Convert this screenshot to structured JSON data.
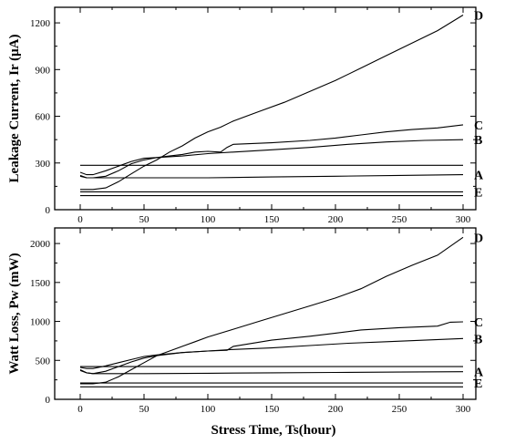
{
  "xlabel": "Stress Time, Ts(hour)",
  "chart_data": [
    {
      "type": "line",
      "ylabel": "Leakage Current, Ir (μA)",
      "xlim": [
        -20,
        310
      ],
      "ylim": [
        0,
        1300
      ],
      "xticks": [
        0,
        50,
        100,
        150,
        200,
        250,
        300
      ],
      "yticks": [
        0,
        300,
        600,
        900,
        1200
      ],
      "xtick_labels": [
        "0",
        "50",
        "100",
        "150",
        "200",
        "250",
        "300"
      ],
      "ytick_labels": [
        "0",
        "300",
        "600",
        "900",
        "1200"
      ],
      "series": [
        {
          "label": "D",
          "x": [
            0,
            10,
            20,
            30,
            40,
            50,
            60,
            70,
            80,
            90,
            100,
            110,
            120,
            140,
            160,
            180,
            200,
            220,
            240,
            260,
            280,
            300
          ],
          "y": [
            130,
            130,
            140,
            180,
            230,
            280,
            320,
            370,
            410,
            460,
            500,
            530,
            570,
            630,
            690,
            760,
            830,
            910,
            990,
            1070,
            1150,
            1250
          ]
        },
        {
          "label": "C",
          "x": [
            0,
            5,
            10,
            20,
            30,
            40,
            50,
            60,
            70,
            80,
            90,
            100,
            110,
            115,
            120,
            150,
            180,
            200,
            220,
            240,
            260,
            280,
            300
          ],
          "y": [
            220,
            205,
            205,
            215,
            250,
            295,
            320,
            335,
            345,
            355,
            370,
            375,
            370,
            400,
            420,
            430,
            445,
            460,
            480,
            500,
            515,
            525,
            545
          ]
        },
        {
          "label": "B",
          "x": [
            0,
            5,
            10,
            20,
            30,
            40,
            50,
            60,
            80,
            100,
            120,
            150,
            180,
            210,
            240,
            270,
            300
          ],
          "y": [
            240,
            225,
            225,
            250,
            280,
            310,
            330,
            335,
            345,
            360,
            370,
            385,
            400,
            420,
            435,
            445,
            450
          ]
        },
        {
          "label": "A",
          "x": [
            0,
            5,
            10,
            50,
            100,
            150,
            200,
            250,
            300
          ],
          "y": [
            215,
            205,
            205,
            205,
            205,
            210,
            215,
            220,
            225
          ]
        },
        {
          "label": "E",
          "x": [
            0,
            300
          ],
          "y": [
            115,
            115
          ]
        },
        {
          "label": "",
          "x": [
            0,
            300
          ],
          "y": [
            285,
            285
          ]
        },
        {
          "label": "",
          "x": [
            0,
            300
          ],
          "y": [
            90,
            90
          ]
        }
      ]
    },
    {
      "type": "line",
      "ylabel": "Watt Loss, Pw (mW)",
      "xlim": [
        -20,
        310
      ],
      "ylim": [
        0,
        2200
      ],
      "xticks": [
        0,
        50,
        100,
        150,
        200,
        250,
        300
      ],
      "yticks": [
        0,
        500,
        1000,
        1500,
        2000
      ],
      "xtick_labels": [
        "0",
        "50",
        "100",
        "150",
        "200",
        "250",
        "300"
      ],
      "ytick_labels": [
        "0",
        "500",
        "1000",
        "1500",
        "2000"
      ],
      "series": [
        {
          "label": "D",
          "x": [
            0,
            10,
            20,
            30,
            40,
            50,
            60,
            70,
            80,
            90,
            100,
            120,
            140,
            160,
            180,
            200,
            220,
            240,
            260,
            280,
            300
          ],
          "y": [
            200,
            200,
            220,
            290,
            380,
            470,
            560,
            620,
            680,
            740,
            800,
            900,
            1000,
            1100,
            1200,
            1300,
            1420,
            1580,
            1720,
            1850,
            2080
          ]
        },
        {
          "label": "C",
          "x": [
            0,
            5,
            10,
            20,
            30,
            40,
            50,
            60,
            80,
            100,
            115,
            120,
            150,
            180,
            200,
            220,
            250,
            280,
            290,
            300
          ],
          "y": [
            370,
            340,
            330,
            360,
            420,
            480,
            530,
            560,
            600,
            620,
            630,
            680,
            760,
            810,
            850,
            890,
            920,
            940,
            990,
            995
          ]
        },
        {
          "label": "B",
          "x": [
            0,
            5,
            10,
            20,
            30,
            40,
            50,
            60,
            80,
            100,
            120,
            150,
            180,
            210,
            240,
            270,
            300
          ],
          "y": [
            410,
            395,
            395,
            430,
            470,
            510,
            550,
            570,
            600,
            620,
            640,
            660,
            690,
            720,
            740,
            760,
            780
          ]
        },
        {
          "label": "A",
          "x": [
            0,
            5,
            10,
            50,
            100,
            150,
            200,
            250,
            300
          ],
          "y": [
            380,
            340,
            330,
            330,
            335,
            340,
            345,
            350,
            355
          ]
        },
        {
          "label": "E",
          "x": [
            0,
            300
          ],
          "y": [
            210,
            210
          ]
        },
        {
          "label": "",
          "x": [
            0,
            300
          ],
          "y": [
            420,
            420
          ]
        },
        {
          "label": "",
          "x": [
            0,
            300
          ],
          "y": [
            160,
            160
          ]
        }
      ]
    }
  ]
}
